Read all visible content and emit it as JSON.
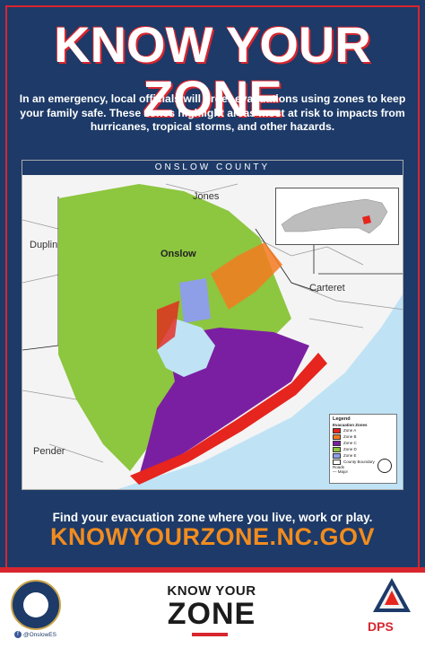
{
  "headline": "KNOW YOUR ZONE",
  "intro": "In an emergency, local officials will order evacuations using zones to keep your family safe. These zones highlight areas most at risk to impacts from hurricanes, tropical storms, and other hazards.",
  "map": {
    "title": "ONSLOW COUNTY",
    "counties": {
      "jones": "Jones",
      "duplin": "Duplin",
      "onslow": "Onslow",
      "carteret": "Carteret",
      "pender": "Pender"
    },
    "legend": {
      "title": "Legend",
      "zones_heading": "Evacuation Zones",
      "zones": [
        {
          "label": "Zone A",
          "color": "#e5251e"
        },
        {
          "label": "Zone B",
          "color": "#f47a20"
        },
        {
          "label": "Zone C",
          "color": "#7b1fa2"
        },
        {
          "label": "Zone D",
          "color": "#8dc63f"
        },
        {
          "label": "Zone E",
          "color": "#8e9fe8"
        }
      ],
      "boundary_label": "County Boundary",
      "roads_heading": "Roads",
      "road_major": "Major"
    }
  },
  "find_text": "Find your evacuation zone where you live, work or play.",
  "url": "KNOWYOURZONE.NC.GOV",
  "footer": {
    "social_handle": "@OnslowES",
    "logo_line1": "KNOW YOUR",
    "logo_line2": "ZONE",
    "agency": "DPS"
  },
  "colors": {
    "navy": "#1d3a68",
    "red": "#d8262e",
    "orange": "#f28c1e"
  }
}
